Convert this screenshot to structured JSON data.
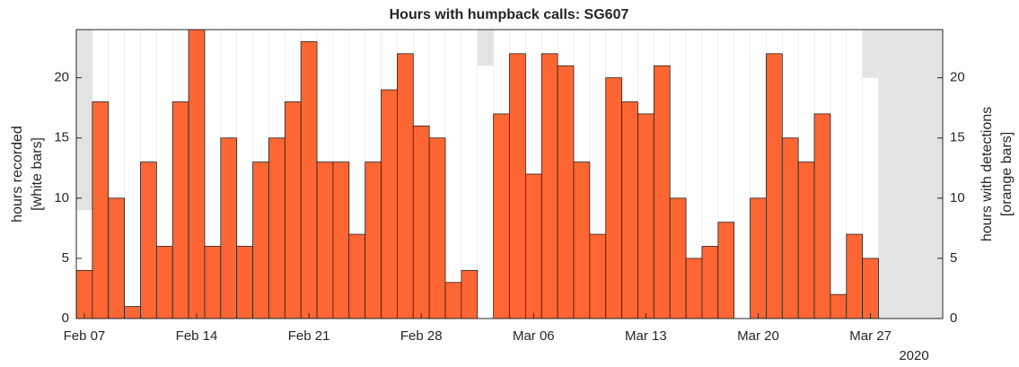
{
  "chart_data": {
    "type": "bar",
    "title": "Hours with humpback calls: SG607",
    "ylabel": [
      "hours recorded",
      "[white bars]"
    ],
    "y2label": [
      "hours with detections",
      "[orange bars]"
    ],
    "x_year_label": "2020",
    "x": [
      "2020-02-07",
      "2020-02-08",
      "2020-02-09",
      "2020-02-10",
      "2020-02-11",
      "2020-02-12",
      "2020-02-13",
      "2020-02-14",
      "2020-02-15",
      "2020-02-16",
      "2020-02-17",
      "2020-02-18",
      "2020-02-19",
      "2020-02-20",
      "2020-02-21",
      "2020-02-22",
      "2020-02-23",
      "2020-02-24",
      "2020-02-25",
      "2020-02-26",
      "2020-02-27",
      "2020-02-28",
      "2020-02-29",
      "2020-03-01",
      "2020-03-02",
      "2020-03-03",
      "2020-03-04",
      "2020-03-05",
      "2020-03-06",
      "2020-03-07",
      "2020-03-08",
      "2020-03-09",
      "2020-03-10",
      "2020-03-11",
      "2020-03-12",
      "2020-03-13",
      "2020-03-14",
      "2020-03-15",
      "2020-03-16",
      "2020-03-17",
      "2020-03-18",
      "2020-03-19",
      "2020-03-20",
      "2020-03-21",
      "2020-03-22",
      "2020-03-23",
      "2020-03-24",
      "2020-03-25",
      "2020-03-26",
      "2020-03-27"
    ],
    "series": [
      {
        "name": "hours recorded",
        "color": "#ffffff",
        "axis": "y",
        "values": [
          9,
          24,
          24,
          24,
          24,
          24,
          24,
          24,
          24,
          24,
          24,
          24,
          24,
          24,
          24,
          24,
          24,
          24,
          24,
          24,
          24,
          24,
          24,
          24,
          24,
          21,
          24,
          24,
          24,
          24,
          24,
          24,
          24,
          24,
          24,
          24,
          24,
          24,
          24,
          24,
          24,
          24,
          24,
          24,
          24,
          24,
          24,
          24,
          24,
          20
        ]
      },
      {
        "name": "hours with detections",
        "color": "#ff6633",
        "axis": "y2",
        "values": [
          4,
          18,
          10,
          1,
          13,
          6,
          18,
          24,
          6,
          15,
          6,
          13,
          15,
          18,
          23,
          13,
          13,
          7,
          13,
          19,
          22,
          16,
          15,
          3,
          4,
          0,
          17,
          22,
          12,
          22,
          21,
          13,
          7,
          20,
          18,
          17,
          21,
          10,
          5,
          6,
          8,
          0,
          10,
          22,
          15,
          13,
          17,
          2,
          7,
          5
        ]
      }
    ],
    "background_color": "#e3e3e3",
    "xlim": [
      "2020-02-06T12:00:00Z",
      "2020-03-31T12:00:00Z"
    ],
    "xticks": [
      {
        "value": "2020-02-07",
        "label": "Feb 07"
      },
      {
        "value": "2020-02-14",
        "label": "Feb 14"
      },
      {
        "value": "2020-02-21",
        "label": "Feb 21"
      },
      {
        "value": "2020-02-28",
        "label": "Feb 28"
      },
      {
        "value": "2020-03-06",
        "label": "Mar 06"
      },
      {
        "value": "2020-03-13",
        "label": "Mar 13"
      },
      {
        "value": "2020-03-20",
        "label": "Mar 20"
      },
      {
        "value": "2020-03-27",
        "label": "Mar 27"
      }
    ],
    "ylim": [
      0,
      24
    ],
    "yticks": [
      0,
      5,
      10,
      15,
      20
    ],
    "y2lim": [
      0,
      24
    ],
    "y2ticks": [
      0,
      5,
      10,
      15,
      20
    ],
    "grid": true
  }
}
